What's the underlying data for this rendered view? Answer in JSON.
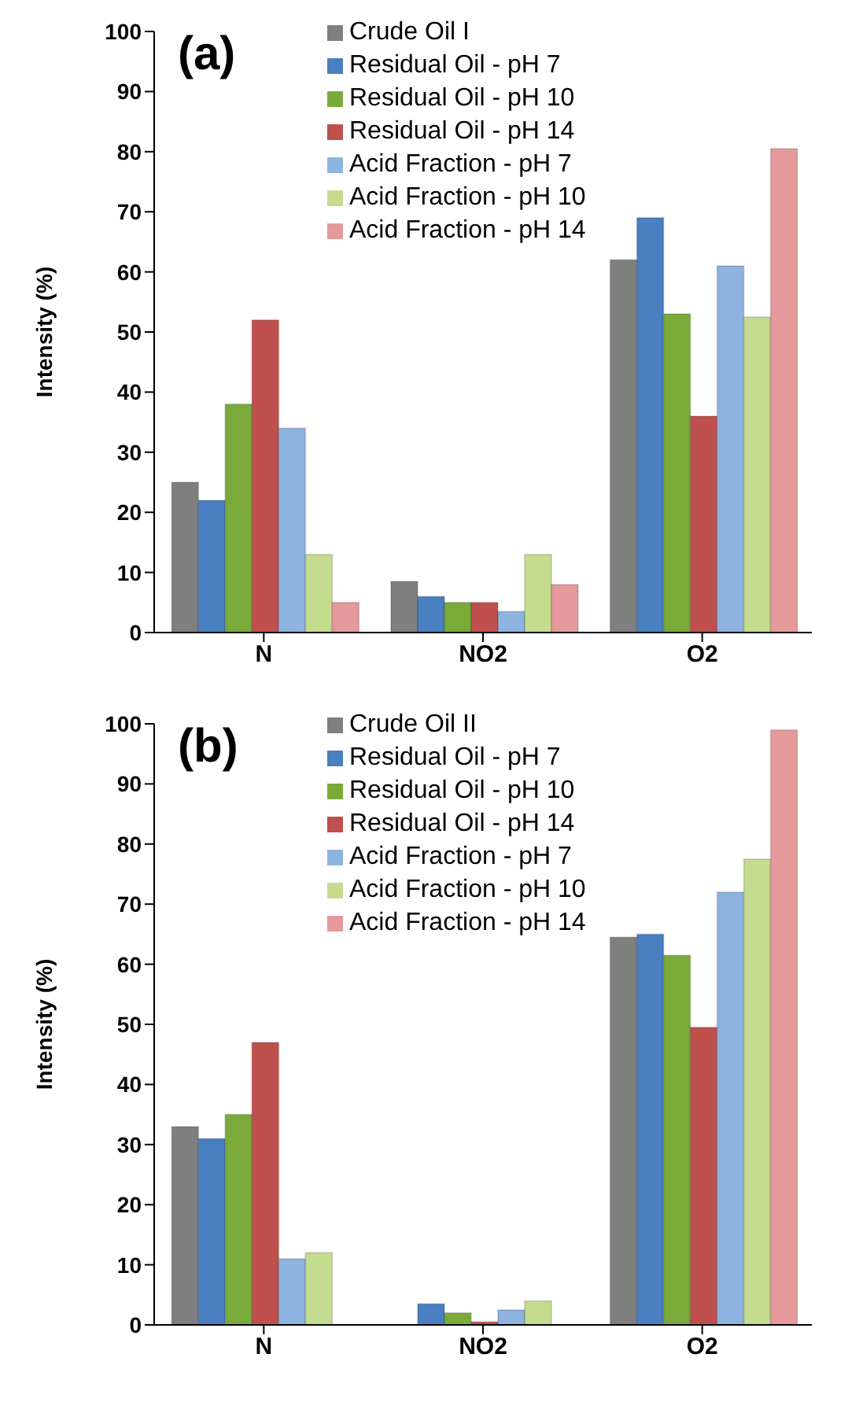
{
  "chart_data": [
    {
      "type": "bar",
      "title": "(a)",
      "ylabel": "Intensity (%)",
      "categories": [
        "N",
        "NO2",
        "O2"
      ],
      "ylim": [
        0,
        100
      ],
      "yticks": [
        0,
        10,
        20,
        30,
        40,
        50,
        60,
        70,
        80,
        90,
        100
      ],
      "grid": false,
      "legend": "top",
      "series": [
        {
          "name": "Crude Oil  I",
          "color": "#7f7f7f",
          "values": [
            25,
            8.5,
            62
          ]
        },
        {
          "name": "Residual Oil - pH 7",
          "color": "#4a7fc1",
          "values": [
            22,
            6,
            69
          ]
        },
        {
          "name": "Residual Oil - pH 10",
          "color": "#7aab3a",
          "values": [
            38,
            5,
            53
          ]
        },
        {
          "name": "Residual Oil - pH 14",
          "color": "#c0504d",
          "values": [
            52,
            5,
            36
          ]
        },
        {
          "name": "Acid Fraction - pH 7",
          "color": "#8fb3e0",
          "values": [
            34,
            3.5,
            61
          ]
        },
        {
          "name": "Acid Fraction - pH 10",
          "color": "#c4dc8e",
          "values": [
            13,
            13,
            52.5
          ]
        },
        {
          "name": "Acid Fraction - pH 14",
          "color": "#e6999a",
          "values": [
            5,
            8,
            80.5
          ]
        }
      ]
    },
    {
      "type": "bar",
      "title": "(b)",
      "ylabel": "Intensity (%)",
      "categories": [
        "N",
        "NO2",
        "O2"
      ],
      "ylim": [
        0,
        100
      ],
      "yticks": [
        0,
        10,
        20,
        30,
        40,
        50,
        60,
        70,
        80,
        90,
        100
      ],
      "grid": false,
      "legend": "top",
      "series": [
        {
          "name": "Crude Oil  II",
          "color": "#7f7f7f",
          "values": [
            33,
            0,
            64.5
          ]
        },
        {
          "name": "Residual Oil - pH 7",
          "color": "#4a7fc1",
          "values": [
            31,
            3.5,
            65
          ]
        },
        {
          "name": "Residual Oil - pH 10",
          "color": "#7aab3a",
          "values": [
            35,
            2,
            61.5
          ]
        },
        {
          "name": "Residual Oil - pH 14",
          "color": "#c0504d",
          "values": [
            47,
            0.5,
            49.5
          ]
        },
        {
          "name": "Acid Fraction - pH 7",
          "color": "#8fb3e0",
          "values": [
            11,
            2.5,
            72
          ]
        },
        {
          "name": "Acid Fraction - pH 10",
          "color": "#c4dc8e",
          "values": [
            12,
            4,
            77.5
          ]
        },
        {
          "name": "Acid Fraction - pH 14",
          "color": "#e6999a",
          "values": [
            0,
            0,
            99
          ]
        }
      ]
    }
  ]
}
